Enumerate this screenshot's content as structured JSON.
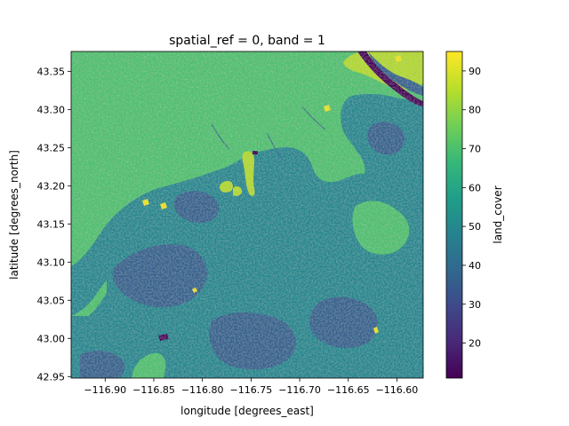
{
  "chart_data": {
    "type": "heatmap",
    "title": "spatial_ref = 0, band = 1",
    "xlabel": "longitude [degrees_east]",
    "ylabel": "latitude [degrees_north]",
    "xlim": [
      -116.935,
      -116.573
    ],
    "ylim": [
      42.948,
      43.376
    ],
    "x_ticks": [
      -116.9,
      -116.85,
      -116.8,
      -116.75,
      -116.7,
      -116.65,
      -116.6
    ],
    "x_tick_labels": [
      "−116.90",
      "−116.85",
      "−116.80",
      "−116.75",
      "−116.70",
      "−116.65",
      "−116.60"
    ],
    "y_ticks": [
      42.95,
      43.0,
      43.05,
      43.1,
      43.15,
      43.2,
      43.25,
      43.3,
      43.35
    ],
    "y_tick_labels": [
      "42.95",
      "43.00",
      "43.05",
      "43.10",
      "43.15",
      "43.20",
      "43.25",
      "43.30",
      "43.35"
    ],
    "colorbar": {
      "label": "land_cover",
      "colormap": "viridis",
      "range": [
        11,
        95
      ],
      "ticks": [
        20,
        30,
        40,
        50,
        60,
        70,
        80,
        90
      ],
      "tick_labels": [
        "20",
        "30",
        "40",
        "50",
        "60",
        "70",
        "80",
        "90"
      ]
    },
    "grid": false,
    "legend": "none"
  },
  "colors": {
    "viridis": [
      "#440154",
      "#482878",
      "#3e4989",
      "#31688e",
      "#26828e",
      "#1f9e89",
      "#35b779",
      "#6ece58",
      "#b5de2b",
      "#fde725"
    ],
    "class_42": "#34608d",
    "class_52": "#24868e",
    "class_71": "#4cc26c",
    "class_81": "#b3dc2b",
    "class_90": "#f0e51f",
    "class_11": "#440154"
  }
}
